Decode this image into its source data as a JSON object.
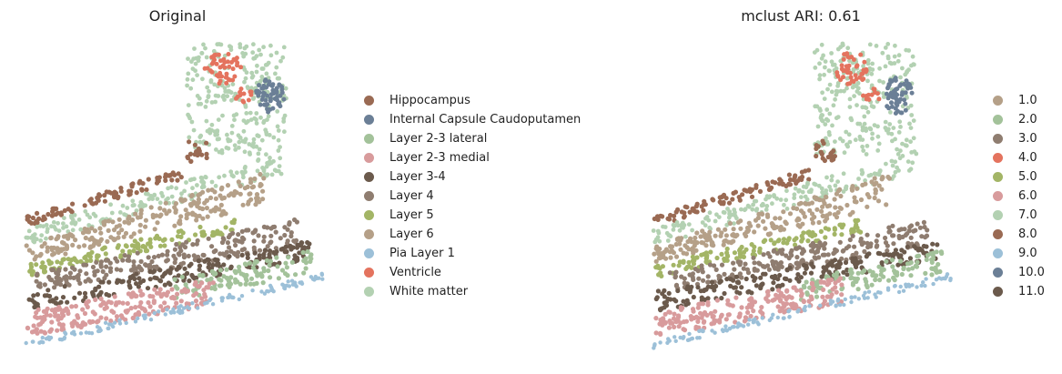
{
  "chart_data": [
    {
      "type": "scatter",
      "title": "Original",
      "legend_placement": "right",
      "grid": false,
      "categories": [
        {
          "name": "Hippocampus",
          "color": "#9a6a53"
        },
        {
          "name": "Internal Capsule Caudoputamen",
          "color": "#6b7f96"
        },
        {
          "name": "Layer 2-3 lateral",
          "color": "#a3c29a"
        },
        {
          "name": "Layer 2-3 medial",
          "color": "#d89b9c"
        },
        {
          "name": "Layer 3-4",
          "color": "#6b5a4c"
        },
        {
          "name": "Layer 4",
          "color": "#8f7d70"
        },
        {
          "name": "Layer 5",
          "color": "#a3b566"
        },
        {
          "name": "Layer 6",
          "color": "#b5a088"
        },
        {
          "name": "Pia Layer 1",
          "color": "#9cc0d8"
        },
        {
          "name": "Ventricle",
          "color": "#e4735e"
        },
        {
          "name": "White matter",
          "color": "#b3d1b2"
        }
      ]
    },
    {
      "type": "scatter",
      "title": "mclust ARI: 0.61",
      "legend_placement": "right",
      "grid": false,
      "categories": [
        {
          "name": "1.0",
          "color": "#b5a088"
        },
        {
          "name": "2.0",
          "color": "#a3c29a"
        },
        {
          "name": "3.0",
          "color": "#8f7d70"
        },
        {
          "name": "4.0",
          "color": "#e4735e"
        },
        {
          "name": "5.0",
          "color": "#a3b566"
        },
        {
          "name": "6.0",
          "color": "#d89b9c"
        },
        {
          "name": "7.0",
          "color": "#b3d1b2"
        },
        {
          "name": "8.0",
          "color": "#9a6a53"
        },
        {
          "name": "9.0",
          "color": "#9cc0d8"
        },
        {
          "name": "10.0",
          "color": "#6b7f96"
        },
        {
          "name": "11.0",
          "color": "#6b5a4c"
        }
      ]
    }
  ]
}
